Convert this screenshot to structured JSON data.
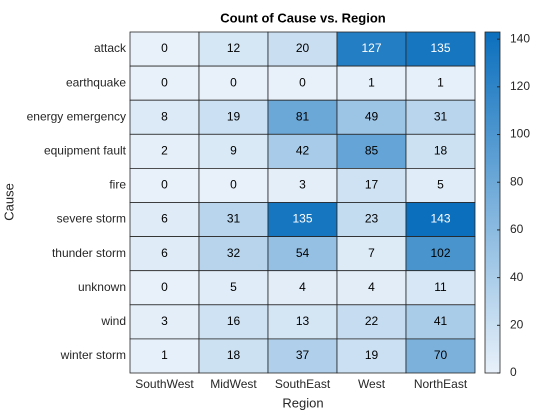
{
  "chart_data": {
    "type": "heatmap",
    "title": "Count of Cause vs. Region",
    "xlabel": "Region",
    "ylabel": "Cause",
    "x": [
      "SouthWest",
      "MidWest",
      "SouthEast",
      "West",
      "NorthEast"
    ],
    "y": [
      "attack",
      "earthquake",
      "energy emergency",
      "equipment fault",
      "fire",
      "severe storm",
      "thunder storm",
      "unknown",
      "wind",
      "winter storm"
    ],
    "values": [
      [
        0,
        12,
        20,
        127,
        135
      ],
      [
        0,
        0,
        0,
        1,
        1
      ],
      [
        8,
        19,
        81,
        49,
        31
      ],
      [
        2,
        9,
        42,
        85,
        18
      ],
      [
        0,
        0,
        3,
        17,
        5
      ],
      [
        6,
        31,
        135,
        23,
        143
      ],
      [
        6,
        32,
        54,
        7,
        102
      ],
      [
        0,
        5,
        4,
        4,
        11
      ],
      [
        3,
        16,
        13,
        22,
        41
      ],
      [
        1,
        18,
        37,
        19,
        70
      ]
    ],
    "colormap": [
      "#e8f1fa",
      "#0b6fbd"
    ],
    "clim": [
      0,
      143
    ],
    "cticks": [
      0,
      20,
      40,
      60,
      80,
      100,
      120,
      140
    ]
  }
}
